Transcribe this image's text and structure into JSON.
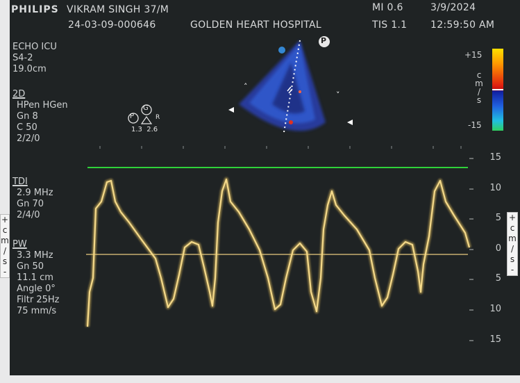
{
  "header": {
    "brand": "PHILIPS",
    "patient": "VIKRAM SINGH 37/M",
    "mi": "MI 0.6",
    "date": "3/9/2024",
    "study_id": "24-03-09-000646",
    "hospital": "GOLDEN HEART HOSPITAL",
    "tis": "TIS 1.1",
    "time": "12:59:50 AM"
  },
  "preset": [
    "ECHO ICU",
    "S4-2",
    "19.0cm"
  ],
  "mode_2d": {
    "heading": "2D",
    "lines": [
      "HPen HGen",
      "Gn 8",
      "C 50",
      "2/2/0"
    ]
  },
  "mode_tdi": {
    "heading": "TDI",
    "lines": [
      "2.9 MHz",
      "Gn 70",
      "2/4/0"
    ]
  },
  "mode_pw": {
    "heading": "PW",
    "lines": [
      "3.3 MHz",
      "Gn 50",
      "11.1 cm",
      "Angle 0°",
      "Filtr 25Hz",
      "75 mm/s"
    ]
  },
  "icons": {
    "p_marker": "P",
    "g_marker": "G",
    "p_small": "P",
    "r_label": "R",
    "values": "1.3  2.6"
  },
  "color_scale": {
    "top": "+15",
    "bottom": "-15",
    "unit_chars": [
      "c",
      "m",
      "/",
      "s"
    ]
  },
  "velocity_ticks": [
    "15",
    "10",
    "5",
    "0",
    "5",
    "10",
    "15"
  ],
  "side_unit": [
    "+",
    "c",
    "m",
    "/",
    "s",
    "-"
  ],
  "colors": {
    "baseline_green": "#2fd23a",
    "trace": "#e8c76a",
    "screen": "#1f2324"
  }
}
